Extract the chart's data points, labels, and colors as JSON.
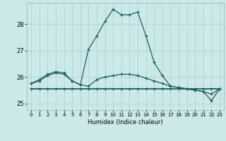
{
  "title": "",
  "xlabel": "Humidex (Indice chaleur)",
  "ylabel": "",
  "bg_color": "#cce8e8",
  "grid_color": "#aacfcf",
  "line_color": "#1a5f5f",
  "xlim": [
    -0.5,
    23.5
  ],
  "ylim": [
    24.75,
    28.8
  ],
  "yticks": [
    25,
    26,
    27,
    28
  ],
  "xticks": [
    0,
    1,
    2,
    3,
    4,
    5,
    6,
    7,
    8,
    9,
    10,
    11,
    12,
    13,
    14,
    15,
    16,
    17,
    18,
    19,
    20,
    21,
    22,
    23
  ],
  "line1_x": [
    0,
    1,
    2,
    3,
    4,
    5,
    6,
    7,
    8,
    9,
    10,
    11,
    12,
    13,
    14,
    15,
    16,
    17,
    18,
    19,
    20,
    21,
    22,
    23
  ],
  "line1_y": [
    25.75,
    25.9,
    26.1,
    26.2,
    26.15,
    25.85,
    25.7,
    27.05,
    27.55,
    28.1,
    28.55,
    28.35,
    28.35,
    28.45,
    27.55,
    26.55,
    26.05,
    25.65,
    25.6,
    25.55,
    25.5,
    25.45,
    25.1,
    25.55
  ],
  "line2_x": [
    0,
    1,
    2,
    3,
    4,
    5,
    6,
    7,
    8,
    9,
    10,
    11,
    12,
    13,
    14,
    15,
    16,
    17,
    18,
    19,
    20,
    21,
    22,
    23
  ],
  "line2_y": [
    25.75,
    25.85,
    26.05,
    26.15,
    26.1,
    25.85,
    25.7,
    25.65,
    25.9,
    26.0,
    26.05,
    26.1,
    26.1,
    26.05,
    25.95,
    25.85,
    25.75,
    25.65,
    25.6,
    25.55,
    25.5,
    25.45,
    25.35,
    25.55
  ],
  "line3_x": [
    0,
    1,
    2,
    3,
    4,
    5,
    6,
    7,
    8,
    9,
    10,
    11,
    12,
    13,
    14,
    15,
    16,
    17,
    18,
    19,
    20,
    21,
    22,
    23
  ],
  "line3_y": [
    25.55,
    25.55,
    25.55,
    25.55,
    25.55,
    25.55,
    25.55,
    25.55,
    25.55,
    25.55,
    25.55,
    25.55,
    25.55,
    25.55,
    25.55,
    25.55,
    25.55,
    25.55,
    25.55,
    25.55,
    25.55,
    25.55,
    25.55,
    25.55
  ]
}
